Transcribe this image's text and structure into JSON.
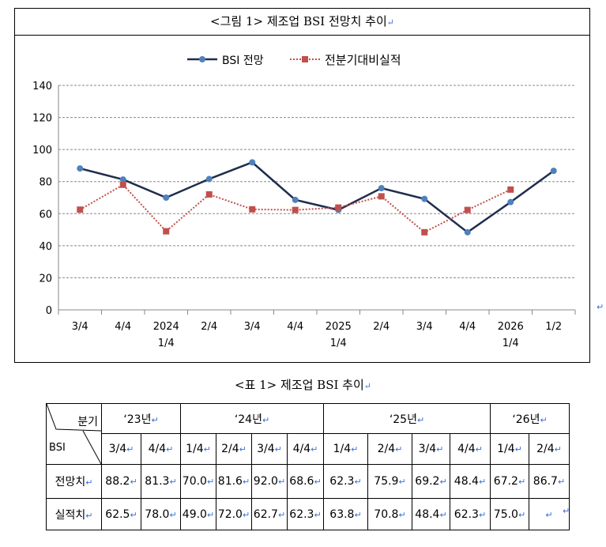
{
  "figure": {
    "title": "<그림 1> 제조업 BSI 전망치 추이"
  },
  "chart_data": {
    "type": "line",
    "categories": [
      [
        "3/4",
        ""
      ],
      [
        "4/4",
        ""
      ],
      [
        "2024",
        "1/4"
      ],
      [
        "2/4",
        ""
      ],
      [
        "3/4",
        ""
      ],
      [
        "4/4",
        ""
      ],
      [
        "2025",
        "1/4"
      ],
      [
        "2/4",
        ""
      ],
      [
        "3/4",
        ""
      ],
      [
        "4/4",
        ""
      ],
      [
        "2026",
        "1/4"
      ],
      [
        "1/2",
        ""
      ]
    ],
    "series": [
      {
        "name": "BSI 전망",
        "color": "#1f2d4e",
        "marker_color": "#4f81bd",
        "style": "solid",
        "values": [
          88.2,
          81.3,
          70.0,
          81.6,
          92.0,
          68.6,
          62.3,
          75.9,
          69.2,
          48.4,
          67.2,
          86.7
        ]
      },
      {
        "name": "전분기대비실적",
        "color": "#c0504d",
        "marker_color": "#c0504d",
        "style": "dotted",
        "values": [
          62.5,
          78.0,
          49.0,
          72.0,
          62.7,
          62.3,
          63.8,
          70.8,
          48.4,
          62.3,
          75.0,
          null
        ]
      }
    ],
    "ylim": [
      0,
      140
    ],
    "yticks": [
      0,
      20,
      40,
      60,
      80,
      100,
      120,
      140
    ],
    "grid": true,
    "legend": "top-center"
  },
  "table": {
    "caption": "<표 1> 제조업 BSI 추이",
    "corner_top": "분기",
    "corner_bottom": "BSI",
    "years": [
      {
        "label": "‘23년",
        "span": 2
      },
      {
        "label": "‘24년",
        "span": 4
      },
      {
        "label": "‘25년",
        "span": 4
      },
      {
        "label": "‘26년",
        "span": 2
      }
    ],
    "quarters": [
      "3/4",
      "4/4",
      "1/4",
      "2/4",
      "3/4",
      "4/4",
      "1/4",
      "2/4",
      "3/4",
      "4/4",
      "1/4",
      "2/4"
    ],
    "rows": [
      {
        "label": "전망치",
        "values": [
          "88.2",
          "81.3",
          "70.0",
          "81.6",
          "92.0",
          "68.6",
          "62.3",
          "75.9",
          "69.2",
          "48.4",
          "67.2",
          "86.7"
        ]
      },
      {
        "label": "실적치",
        "values": [
          "62.5",
          "78.0",
          "49.0",
          "72.0",
          "62.7",
          "62.3",
          "63.8",
          "70.8",
          "48.4",
          "62.3",
          "75.0",
          ""
        ]
      }
    ]
  }
}
